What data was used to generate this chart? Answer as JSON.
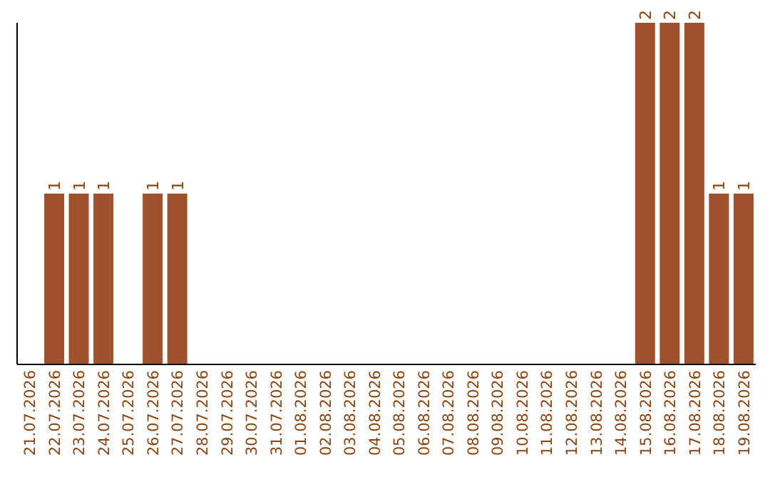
{
  "chart_data": {
    "type": "bar",
    "categories": [
      "21.07.2026",
      "22.07.2026",
      "23.07.2026",
      "24.07.2026",
      "25.07.2026",
      "26.07.2026",
      "27.07.2026",
      "28.07.2026",
      "29.07.2026",
      "30.07.2026",
      "31.07.2026",
      "01.08.2026",
      "02.08.2026",
      "03.08.2026",
      "04.08.2026",
      "05.08.2026",
      "06.08.2026",
      "07.08.2026",
      "08.08.2026",
      "09.08.2026",
      "10.08.2026",
      "11.08.2026",
      "12.08.2026",
      "13.08.2026",
      "14.08.2026",
      "15.08.2026",
      "16.08.2026",
      "17.08.2026",
      "18.08.2026",
      "19.08.2026"
    ],
    "values": [
      0,
      1,
      1,
      1,
      0,
      1,
      1,
      0,
      0,
      0,
      0,
      0,
      0,
      0,
      0,
      0,
      0,
      0,
      0,
      0,
      0,
      0,
      0,
      0,
      0,
      2,
      2,
      2,
      1,
      1
    ],
    "value_labels": [
      null,
      "1",
      "1",
      "1",
      null,
      "1",
      "1",
      null,
      null,
      null,
      null,
      null,
      null,
      null,
      null,
      null,
      null,
      null,
      null,
      null,
      null,
      null,
      null,
      null,
      null,
      "2",
      "2",
      "2",
      "1",
      "1"
    ],
    "color": "#a0522d",
    "relative": false,
    "tick_labels": "x",
    "legend": false,
    "grid": false
  }
}
